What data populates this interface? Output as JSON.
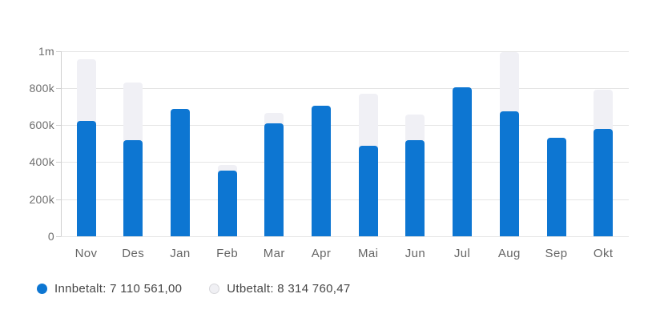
{
  "legend": {
    "items": [
      {
        "id": "innbetalt",
        "label": "Innbetalt: 7 110 561,00",
        "marker_color": "#0d76d2"
      },
      {
        "id": "utbetalt",
        "label": "Utbetalt: 8 314 760,47",
        "marker_color": "#f0f0f4",
        "marker_border": "#d7d7db"
      }
    ]
  },
  "chart_data": {
    "type": "bar",
    "title": "",
    "xlabel": "",
    "ylabel": "",
    "categories": [
      "Nov",
      "Des",
      "Jan",
      "Feb",
      "Mar",
      "Apr",
      "Mai",
      "Jun",
      "Jul",
      "Aug",
      "Sep",
      "Okt"
    ],
    "series": [
      {
        "name": "Innbetalt",
        "total": "7 110 561,00",
        "color": "#0d76d2",
        "values": [
          620000,
          520000,
          685000,
          355000,
          610000,
          705000,
          490000,
          518000,
          805000,
          675000,
          530000,
          580000
        ]
      },
      {
        "name": "Utbetalt",
        "total": "8 314 760,47",
        "color": "#f0f0f5",
        "values": [
          955000,
          830000,
          null,
          385000,
          665000,
          null,
          767000,
          655000,
          null,
          995000,
          null,
          790000
        ]
      }
    ],
    "ylim": [
      0,
      1000000
    ],
    "yticks": [
      {
        "value": 0,
        "label": "0"
      },
      {
        "value": 200000,
        "label": "200k"
      },
      {
        "value": 400000,
        "label": "400k"
      },
      {
        "value": 600000,
        "label": "600k"
      },
      {
        "value": 800000,
        "label": "800k"
      },
      {
        "value": 1000000,
        "label": "1m"
      }
    ],
    "grid": true,
    "legend_position": "bottom",
    "bar_layout": "overlapped, Utbetalt behind Innbetalt, rounded top corners"
  }
}
